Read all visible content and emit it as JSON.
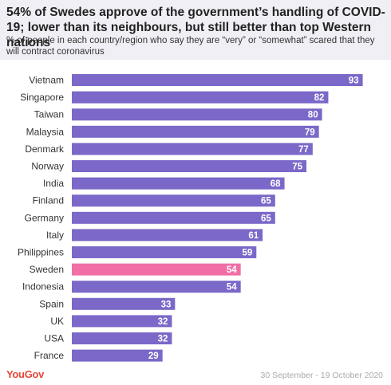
{
  "header": {
    "title": "54% of Swedes approve of the government’s handling of COVID-19; lower than its neighbours, but still better than top Western nations",
    "subtitle": "% of people in each country/region who say they are “very” or “somewhat” scared that they will contract coronavirus"
  },
  "footer": {
    "brand": "YouGov",
    "date_range": "30 September - 19 October 2020"
  },
  "colors": {
    "bar": "#7b68c8",
    "highlight": "#f070a6",
    "header_bg": "#f0eff5"
  },
  "chart_data": {
    "type": "bar",
    "orientation": "horizontal",
    "categories": [
      "Vietnam",
      "Singapore",
      "Taiwan",
      "Malaysia",
      "Denmark",
      "Norway",
      "India",
      "Finland",
      "Germany",
      "Italy",
      "Philippines",
      "Sweden",
      "Indonesia",
      "Spain",
      "UK",
      "USA",
      "France"
    ],
    "values": [
      93,
      82,
      80,
      79,
      77,
      75,
      68,
      65,
      65,
      61,
      59,
      54,
      54,
      33,
      32,
      32,
      29
    ],
    "highlight_category": "Sweden",
    "xlim": [
      0,
      100
    ],
    "grid": false
  }
}
